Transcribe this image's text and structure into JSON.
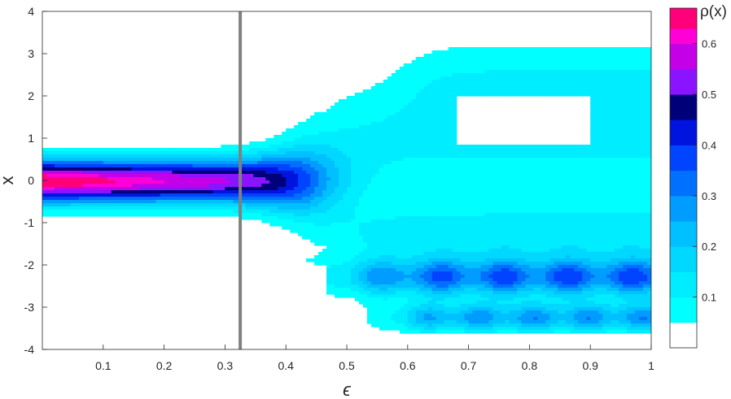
{
  "chart_data": {
    "type": "heatmap",
    "subtype": "filled-contour",
    "title": "",
    "xlabel": "ϵ",
    "ylabel": "x",
    "xlim": [
      0,
      1
    ],
    "ylim": [
      -4,
      4
    ],
    "xticks": [
      "0.1",
      "0.2",
      "0.3",
      "0.4",
      "0.5",
      "0.6",
      "0.7",
      "0.8",
      "0.9",
      "1"
    ],
    "yticks": [
      "-4",
      "-3",
      "-2",
      "-1",
      "0",
      "1",
      "2",
      "3",
      "4"
    ],
    "grid": false,
    "vertical_marker": {
      "x": 0.325,
      "color": "#808080"
    },
    "colorbar": {
      "label": "ρ(x)",
      "placement": "right",
      "ticks": [
        "0.1",
        "0.2",
        "0.3",
        "0.4",
        "0.5",
        "0.6"
      ],
      "range": [
        0,
        0.67
      ],
      "levels": [
        {
          "min": 0.0,
          "color": "#ffffff"
        },
        {
          "min": 0.05,
          "color": "#00ffff"
        },
        {
          "min": 0.1,
          "color": "#00ecff"
        },
        {
          "min": 0.15,
          "color": "#00d8ff"
        },
        {
          "min": 0.2,
          "color": "#00c0ff"
        },
        {
          "min": 0.25,
          "color": "#009cff"
        },
        {
          "min": 0.3,
          "color": "#0070ff"
        },
        {
          "min": 0.35,
          "color": "#0044ff"
        },
        {
          "min": 0.4,
          "color": "#0014e0"
        },
        {
          "min": 0.45,
          "color": "#00007a"
        },
        {
          "min": 0.5,
          "color": "#8a14ff"
        },
        {
          "min": 0.55,
          "color": "#c400e8"
        },
        {
          "min": 0.6,
          "color": "#ff00d6"
        },
        {
          "min": 0.63,
          "color": "#ff007a"
        }
      ]
    },
    "regions": [
      {
        "name": "single-peak",
        "x_range": [
          0,
          0.48
        ],
        "center": 0.0,
        "peak_density": 0.66,
        "support": [
          -1.3,
          1.3
        ]
      },
      {
        "name": "upper-band",
        "x_range": [
          0.55,
          1
        ],
        "center": 1.6,
        "peak_density": 0.12,
        "support": [
          0.2,
          3.5
        ]
      },
      {
        "name": "lower-band",
        "x_range": [
          0.5,
          1
        ],
        "center": -2.3,
        "peak_density": 0.4,
        "support": [
          -3.6,
          -0.5
        ]
      },
      {
        "name": "bottom-band",
        "x_range": [
          0.55,
          1
        ],
        "center": -3.3,
        "peak_density": 0.33,
        "support": [
          -3.6,
          -2.9
        ]
      }
    ]
  }
}
